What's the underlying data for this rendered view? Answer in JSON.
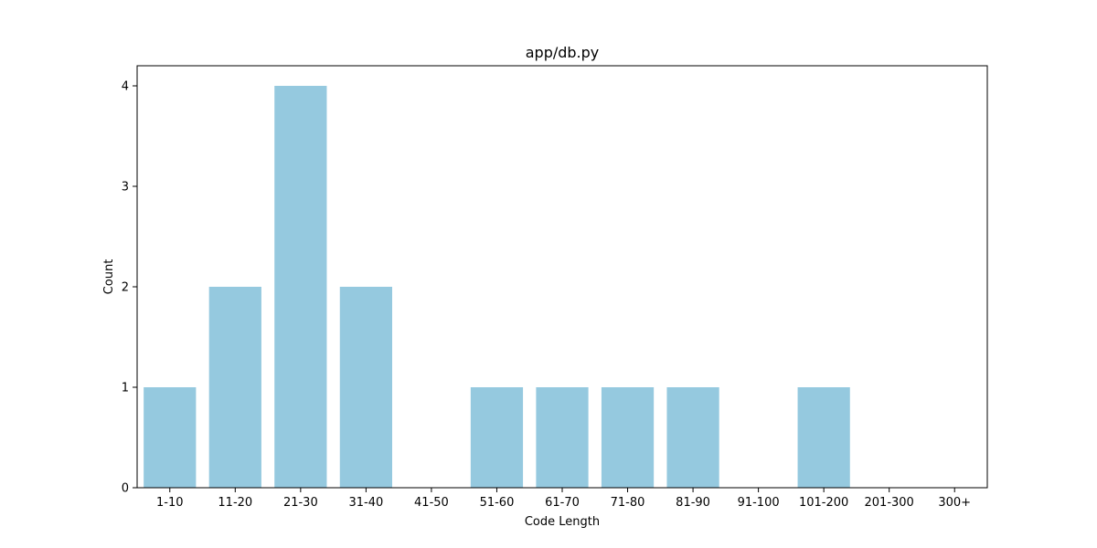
{
  "chart_data": {
    "type": "bar",
    "title": "app/db.py",
    "xlabel": "Code Length",
    "ylabel": "Count",
    "categories": [
      "1-10",
      "11-20",
      "21-30",
      "31-40",
      "41-50",
      "51-60",
      "61-70",
      "71-80",
      "81-90",
      "91-100",
      "101-200",
      "201-300",
      "300+"
    ],
    "values": [
      1,
      2,
      4,
      2,
      0,
      1,
      1,
      1,
      1,
      0,
      1,
      0,
      0
    ],
    "ylim": [
      0,
      4.2
    ],
    "yticks": [
      0,
      1,
      2,
      3,
      4
    ],
    "bar_color": "#95c9df",
    "grid": false,
    "legend": "none"
  }
}
